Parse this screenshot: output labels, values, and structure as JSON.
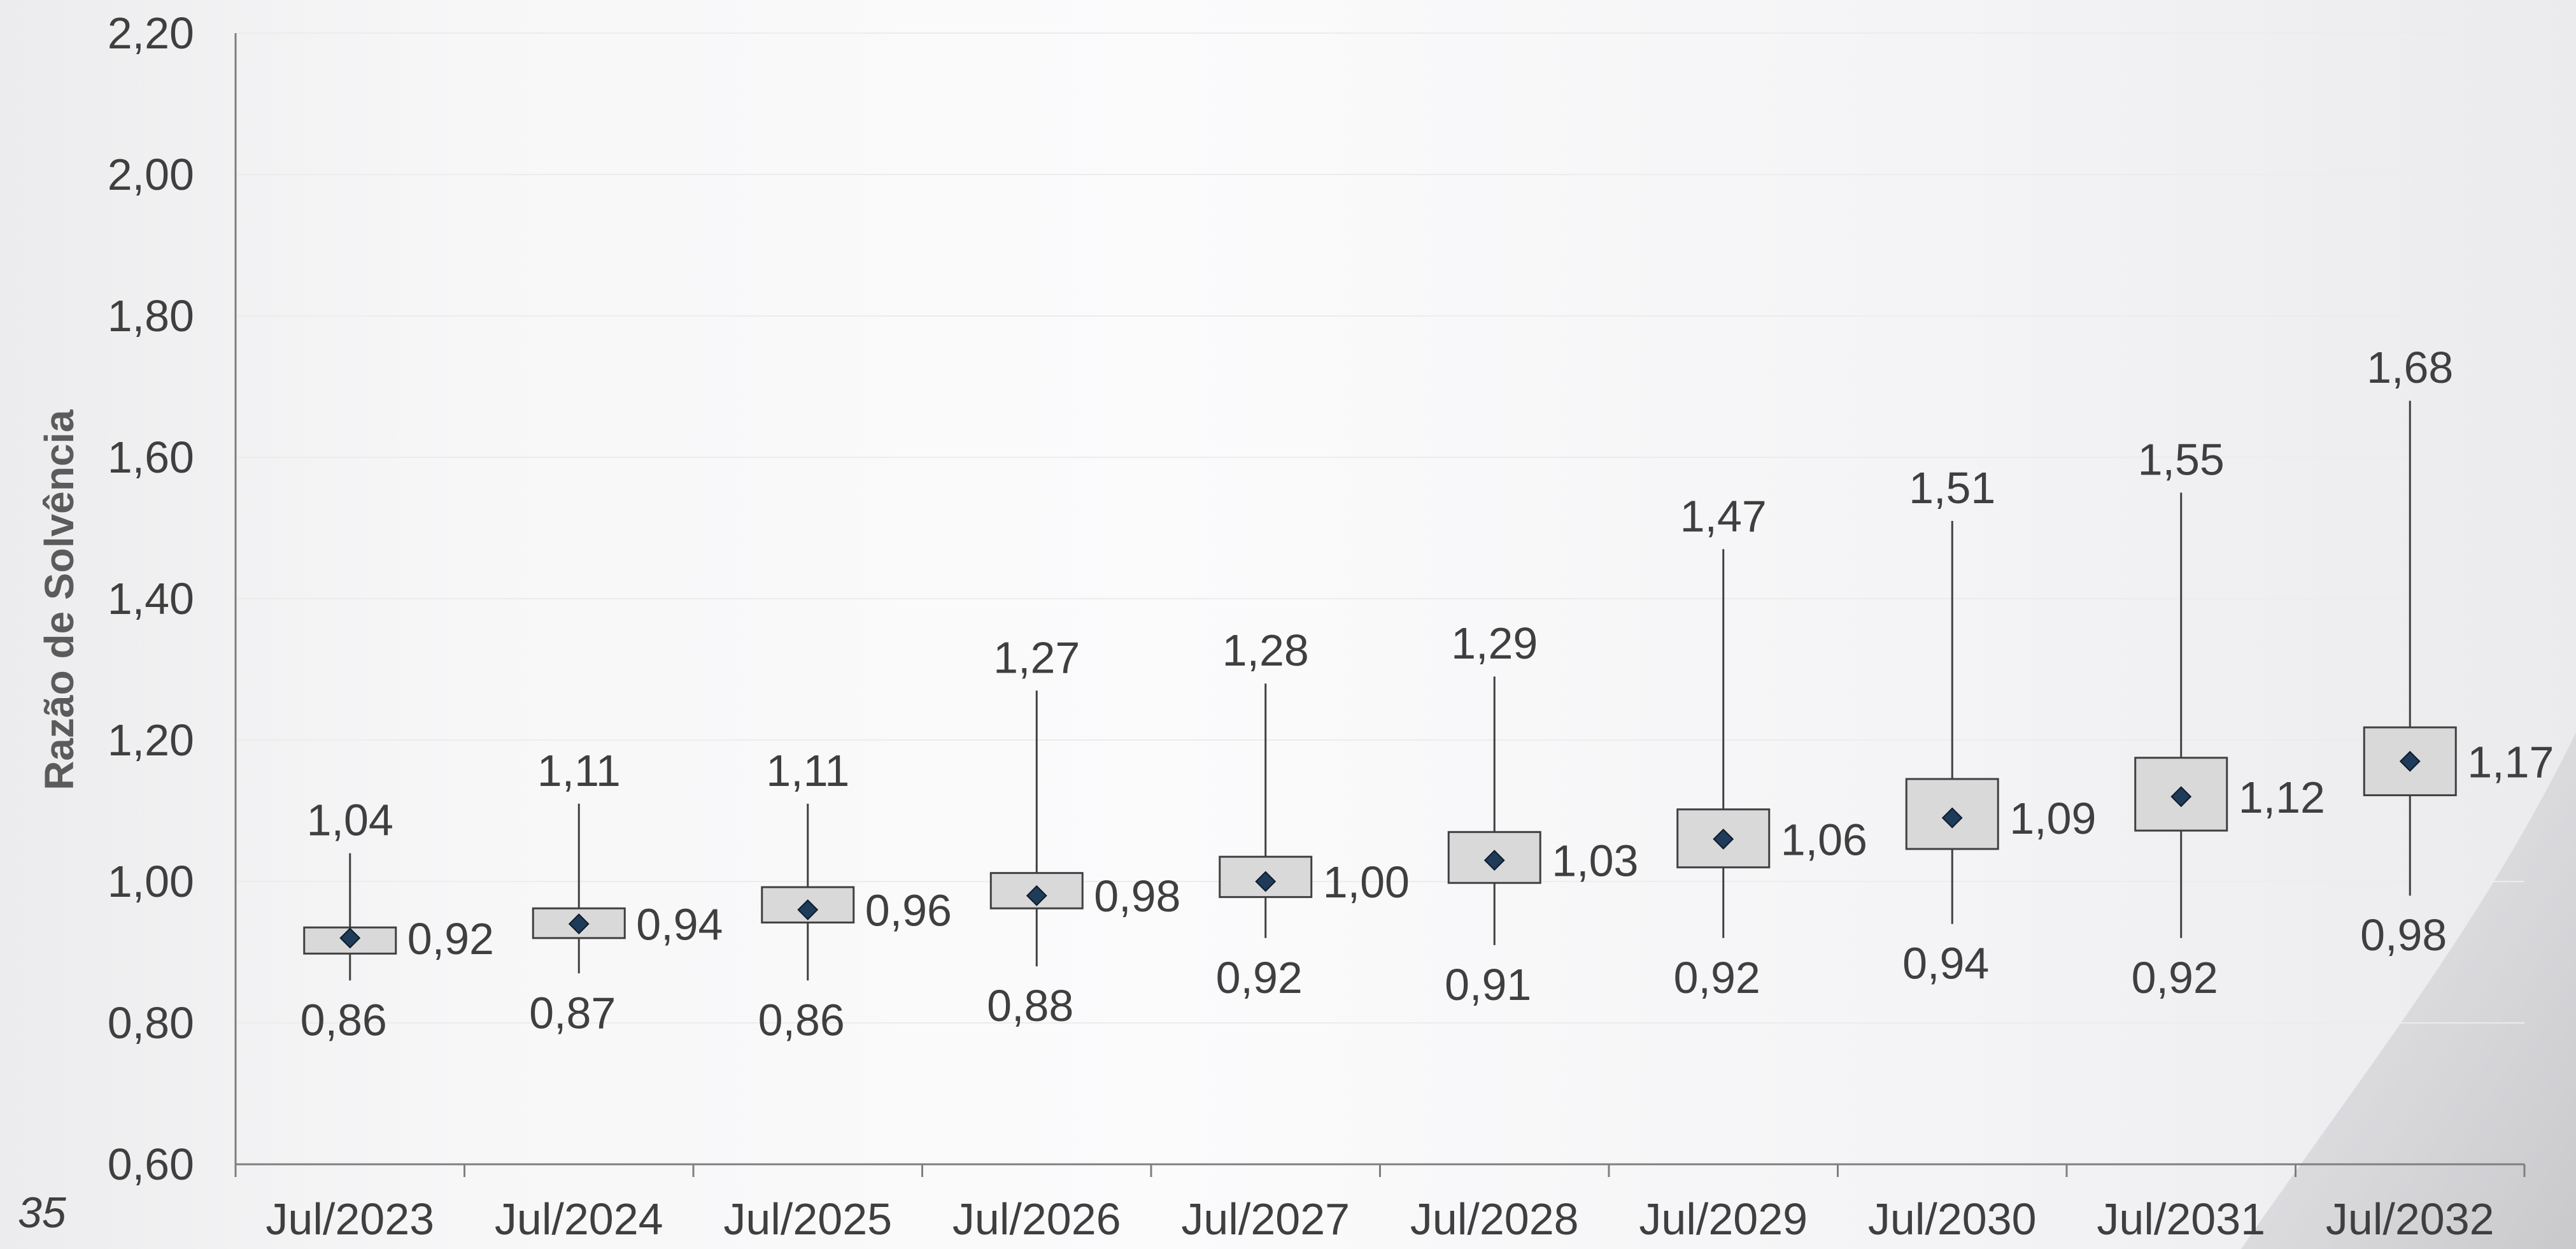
{
  "page": {
    "number": "35"
  },
  "chart_data": {
    "type": "boxplot",
    "title": "",
    "xlabel": "",
    "ylabel": "Razão de Solvência",
    "ylim": [
      0.6,
      2.2
    ],
    "yticks": [
      "0,60",
      "0,80",
      "1,00",
      "1,20",
      "1,40",
      "1,60",
      "1,80",
      "2,00",
      "2,20"
    ],
    "grid": true,
    "categories": [
      "Jul/2023",
      "Jul/2024",
      "Jul/2025",
      "Jul/2026",
      "Jul/2027",
      "Jul/2028",
      "Jul/2029",
      "Jul/2030",
      "Jul/2031",
      "Jul/2032"
    ],
    "series": [
      {
        "max": [
          1.04,
          1.11,
          1.11,
          1.27,
          1.28,
          1.29,
          1.47,
          1.51,
          1.55,
          1.68
        ],
        "q3": [
          0.935,
          0.962,
          0.992,
          1.012,
          1.035,
          1.07,
          1.102,
          1.145,
          1.175,
          1.218
        ],
        "mean": [
          0.92,
          0.94,
          0.96,
          0.98,
          1.0,
          1.03,
          1.06,
          1.09,
          1.12,
          1.17
        ],
        "q1": [
          0.898,
          0.92,
          0.942,
          0.962,
          0.978,
          0.998,
          1.02,
          1.046,
          1.072,
          1.122
        ],
        "min": [
          0.86,
          0.87,
          0.86,
          0.88,
          0.92,
          0.91,
          0.92,
          0.94,
          0.92,
          0.98
        ]
      }
    ],
    "labels": {
      "max": [
        "1,04",
        "1,11",
        "1,11",
        "1,27",
        "1,28",
        "1,29",
        "1,47",
        "1,51",
        "1,55",
        "1,68"
      ],
      "mean": [
        "0,92",
        "0,94",
        "0,96",
        "0,98",
        "1,00",
        "1,03",
        "1,06",
        "1,09",
        "1,12",
        "1,17"
      ],
      "min": [
        "0,86",
        "0,87",
        "0,86",
        "0,88",
        "0,92",
        "0,91",
        "0,92",
        "0,94",
        "0,92",
        "0,98"
      ]
    },
    "colors": {
      "box_fill": "#d9d9d9",
      "box_stroke": "#404040",
      "marker": "#1f3b5a",
      "axis": "#7f7f7f",
      "grid": "#ececec"
    }
  }
}
